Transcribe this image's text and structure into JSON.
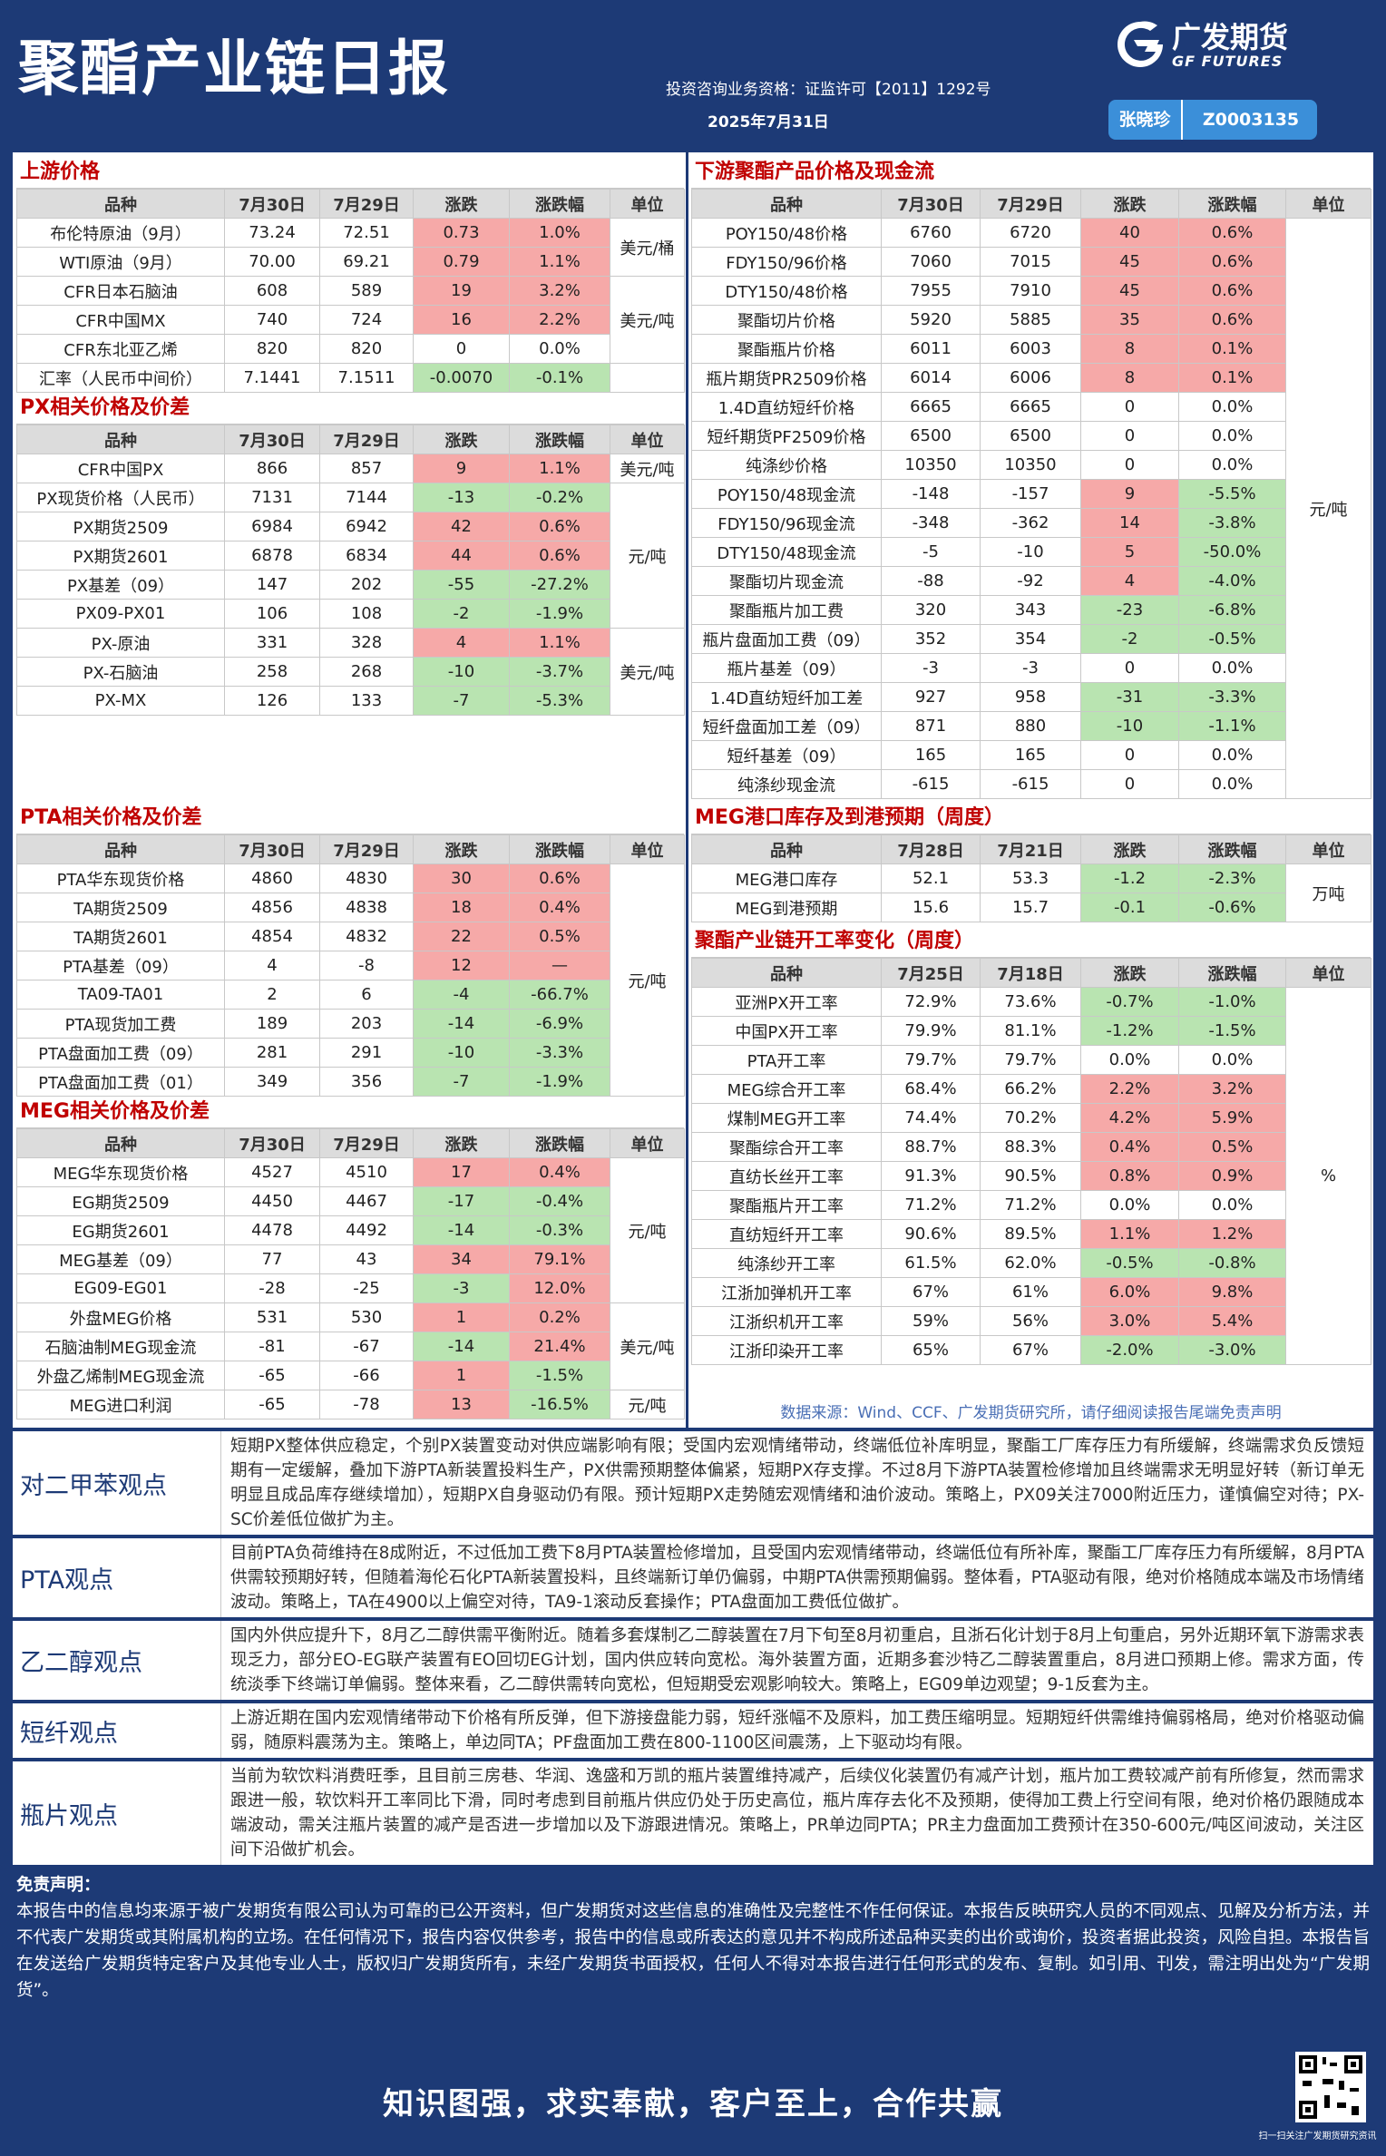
{
  "header": {
    "title": "聚酯产业链日报",
    "license": "投资咨询业务资格：证监许可【2011】1292号",
    "date": "2025年7月31日",
    "logo_cn": "广发期货",
    "logo_en": "GF FUTURES",
    "analyst": "张晓珍",
    "analyst_id": "Z0003135"
  },
  "tables": [
    {
      "title": "上游价格",
      "columns": [
        "品种",
        "7月30日",
        "7月29日",
        "涨跌",
        "涨跌幅",
        "单位"
      ],
      "rows": [
        [
          "布伦特原油（9月）",
          "73.24",
          "72.51",
          "0.73",
          "1.0%"
        ],
        [
          "WTI原油（9月）",
          "70.00",
          "69.21",
          "0.79",
          "1.1%"
        ],
        [
          "CFR日本石脑油",
          "608",
          "589",
          "19",
          "3.2%"
        ],
        [
          "CFR中国MX",
          "740",
          "724",
          "16",
          "2.2%"
        ],
        [
          "CFR东北亚乙烯",
          "820",
          "820",
          "0",
          "0.0%"
        ],
        [
          "汇率（人民币中间价）",
          "7.1441",
          "7.1511",
          "-0.0070",
          "-0.1%"
        ]
      ],
      "unit_groups": [
        {
          "unit": "美元/桶",
          "rows": [
            0,
            1
          ]
        },
        {
          "unit": "美元/吨",
          "rows": [
            2,
            3,
            4
          ]
        }
      ]
    },
    {
      "title": "PX相关价格及价差",
      "columns": [
        "品种",
        "7月30日",
        "7月29日",
        "涨跌",
        "涨跌幅",
        "单位"
      ],
      "rows": [
        [
          "CFR中国PX",
          "866",
          "857",
          "9",
          "1.1%"
        ],
        [
          "PX现货价格（人民币）",
          "7131",
          "7144",
          "-13",
          "-0.2%"
        ],
        [
          "PX期货2509",
          "6984",
          "6942",
          "42",
          "0.6%"
        ],
        [
          "PX期货2601",
          "6878",
          "6834",
          "44",
          "0.6%"
        ],
        [
          "PX基差（09）",
          "147",
          "202",
          "-55",
          "-27.2%"
        ],
        [
          "PX09-PX01",
          "106",
          "108",
          "-2",
          "-1.9%"
        ],
        [
          "PX-原油",
          "331",
          "328",
          "4",
          "1.1%"
        ],
        [
          "PX-石脑油",
          "258",
          "268",
          "-10",
          "-3.7%"
        ],
        [
          "PX-MX",
          "126",
          "133",
          "-7",
          "-5.3%"
        ]
      ],
      "unit_groups": [
        {
          "unit": "美元/吨",
          "rows": [
            0
          ]
        },
        {
          "unit": "元/吨",
          "rows": [
            1,
            2,
            3,
            4,
            5
          ]
        },
        {
          "unit": "美元/吨",
          "rows": [
            6,
            7,
            8
          ]
        }
      ]
    },
    {
      "title": "PTA相关价格及价差",
      "columns": [
        "品种",
        "7月30日",
        "7月29日",
        "涨跌",
        "涨跌幅",
        "单位"
      ],
      "rows": [
        [
          "PTA华东现货价格",
          "4860",
          "4830",
          "30",
          "0.6%"
        ],
        [
          "TA期货2509",
          "4856",
          "4838",
          "18",
          "0.4%"
        ],
        [
          "TA期货2601",
          "4854",
          "4832",
          "22",
          "0.5%"
        ],
        [
          "PTA基差（09）",
          "4",
          "-8",
          "12",
          "—"
        ],
        [
          "TA09-TA01",
          "2",
          "6",
          "-4",
          "-66.7%"
        ],
        [
          "PTA现货加工费",
          "189",
          "203",
          "-14",
          "-6.9%"
        ],
        [
          "PTA盘面加工费（09）",
          "281",
          "291",
          "-10",
          "-3.3%"
        ],
        [
          "PTA盘面加工费（01）",
          "349",
          "356",
          "-7",
          "-1.9%"
        ]
      ],
      "unit_groups": [
        {
          "unit": "元/吨",
          "rows": [
            0,
            1,
            2,
            3,
            4,
            5,
            6,
            7
          ]
        }
      ]
    },
    {
      "title": "MEG相关价格及价差",
      "columns": [
        "品种",
        "7月30日",
        "7月29日",
        "涨跌",
        "涨跌幅",
        "单位"
      ],
      "rows": [
        [
          "MEG华东现货价格",
          "4527",
          "4510",
          "17",
          "0.4%"
        ],
        [
          "EG期货2509",
          "4450",
          "4467",
          "-17",
          "-0.4%"
        ],
        [
          "EG期货2601",
          "4478",
          "4492",
          "-14",
          "-0.3%"
        ],
        [
          "MEG基差（09）",
          "77",
          "43",
          "34",
          "79.1%"
        ],
        [
          "EG09-EG01",
          "-28",
          "-25",
          "-3",
          "12.0%"
        ],
        [
          "外盘MEG价格",
          "531",
          "530",
          "1",
          "0.2%"
        ],
        [
          "石脑油制MEG现金流",
          "-81",
          "-67",
          "-14",
          "21.4%"
        ],
        [
          "外盘乙烯制MEG现金流",
          "-65",
          "-66",
          "1",
          "-1.5%"
        ],
        [
          "MEG进口利润",
          "-65",
          "-78",
          "13",
          "-16.5%"
        ]
      ],
      "unit_groups": [
        {
          "unit": "元/吨",
          "rows": [
            0,
            1,
            2,
            3,
            4
          ]
        },
        {
          "unit": "美元/吨",
          "rows": [
            5,
            6,
            7
          ]
        },
        {
          "unit": "元/吨",
          "rows": [
            8
          ]
        }
      ]
    },
    {
      "title": "下游聚酯产品价格及现金流",
      "columns": [
        "品种",
        "7月30日",
        "7月29日",
        "涨跌",
        "涨跌幅",
        "单位"
      ],
      "rows": [
        [
          "POY150/48价格",
          "6760",
          "6720",
          "40",
          "0.6%"
        ],
        [
          "FDY150/96价格",
          "7060",
          "7015",
          "45",
          "0.6%"
        ],
        [
          "DTY150/48价格",
          "7955",
          "7910",
          "45",
          "0.6%"
        ],
        [
          "聚酯切片价格",
          "5920",
          "5885",
          "35",
          "0.6%"
        ],
        [
          "聚酯瓶片价格",
          "6011",
          "6003",
          "8",
          "0.1%"
        ],
        [
          "瓶片期货PR2509价格",
          "6014",
          "6006",
          "8",
          "0.1%"
        ],
        [
          "1.4D直纺短纤价格",
          "6665",
          "6665",
          "0",
          "0.0%"
        ],
        [
          "短纤期货PF2509价格",
          "6500",
          "6500",
          "0",
          "0.0%"
        ],
        [
          "纯涤纱价格",
          "10350",
          "10350",
          "0",
          "0.0%"
        ],
        [
          "POY150/48现金流",
          "-148",
          "-157",
          "9",
          "-5.5%"
        ],
        [
          "FDY150/96现金流",
          "-348",
          "-362",
          "14",
          "-3.8%"
        ],
        [
          "DTY150/48现金流",
          "-5",
          "-10",
          "5",
          "-50.0%"
        ],
        [
          "聚酯切片现金流",
          "-88",
          "-92",
          "4",
          "-4.0%"
        ],
        [
          "聚酯瓶片加工费",
          "320",
          "343",
          "-23",
          "-6.8%"
        ],
        [
          "瓶片盘面加工费（09）",
          "352",
          "354",
          "-2",
          "-0.5%"
        ],
        [
          "瓶片基差（09）",
          "-3",
          "-3",
          "0",
          "0.0%"
        ],
        [
          "1.4D直纺短纤加工差",
          "927",
          "958",
          "-31",
          "-3.3%"
        ],
        [
          "短纤盘面加工差（09）",
          "871",
          "880",
          "-10",
          "-1.1%"
        ],
        [
          "短纤基差（09）",
          "165",
          "165",
          "0",
          "0.0%"
        ],
        [
          "纯涤纱现金流",
          "-615",
          "-615",
          "0",
          "0.0%"
        ]
      ],
      "unit_groups": [
        {
          "unit": "元/吨",
          "rows": [
            0,
            1,
            2,
            3,
            4,
            5,
            6,
            7,
            8,
            9,
            10,
            11,
            12,
            13,
            14,
            15,
            16,
            17,
            18,
            19
          ]
        }
      ]
    },
    {
      "title": "MEG港口库存及到港预期（周度）",
      "columns": [
        "品种",
        "7月28日",
        "7月21日",
        "涨跌",
        "涨跌幅",
        "单位"
      ],
      "rows": [
        [
          "MEG港口库存",
          "52.1",
          "53.3",
          "-1.2",
          "-2.3%"
        ],
        [
          "MEG到港预期",
          "15.6",
          "15.7",
          "-0.1",
          "-0.6%"
        ]
      ],
      "unit_groups": [
        {
          "unit": "万吨",
          "rows": [
            0,
            1
          ]
        }
      ]
    },
    {
      "title": "聚酯产业链开工率变化（周度）",
      "columns": [
        "品种",
        "7月25日",
        "7月18日",
        "涨跌",
        "涨跌幅",
        "单位"
      ],
      "rows": [
        [
          "亚洲PX开工率",
          "72.9%",
          "73.6%",
          "-0.7%",
          "-1.0%"
        ],
        [
          "中国PX开工率",
          "79.9%",
          "81.1%",
          "-1.2%",
          "-1.5%"
        ],
        [
          "PTA开工率",
          "79.7%",
          "79.7%",
          "0.0%",
          "0.0%"
        ],
        [
          "MEG综合开工率",
          "68.4%",
          "66.2%",
          "2.2%",
          "3.2%"
        ],
        [
          "煤制MEG开工率",
          "74.4%",
          "70.2%",
          "4.2%",
          "5.9%"
        ],
        [
          "聚酯综合开工率",
          "88.7%",
          "88.3%",
          "0.4%",
          "0.5%"
        ],
        [
          "直纺长丝开工率",
          "91.3%",
          "90.5%",
          "0.8%",
          "0.9%"
        ],
        [
          "聚酯瓶片开工率",
          "71.2%",
          "71.2%",
          "0.0%",
          "0.0%"
        ],
        [
          "直纺短纤开工率",
          "90.6%",
          "89.5%",
          "1.1%",
          "1.2%"
        ],
        [
          "纯涤纱开工率",
          "61.5%",
          "62.0%",
          "-0.5%",
          "-0.8%"
        ],
        [
          "江浙加弹机开工率",
          "67%",
          "61%",
          "6.0%",
          "9.8%"
        ],
        [
          "江浙织机开工率",
          "59%",
          "56%",
          "3.0%",
          "5.4%"
        ],
        [
          "江浙印染开工率",
          "65%",
          "67%",
          "-2.0%",
          "-3.0%"
        ]
      ],
      "unit_groups": [
        {
          "unit": "%",
          "rows": [
            0,
            1,
            2,
            3,
            4,
            5,
            6,
            7,
            8,
            9,
            10,
            11,
            12
          ]
        }
      ]
    }
  ],
  "source": "数据来源：Wind、CCF、广发期货研究所，请仔细阅读报告尾端免责声明",
  "views": [
    {
      "label": "对二甲苯观点",
      "text": "短期PX整体供应稳定，个别PX装置变动对供应端影响有限；受国内宏观情绪带动，终端低位补库明显，聚酯工厂库存压力有所缓解，终端需求负反馈短期有一定缓解，叠加下游PTA新装置投料生产，PX供需预期整体偏紧，短期PX存支撑。不过8月下游PTA装置检修增加且终端需求无明显好转（新订单无明显且成品库存继续增加），短期PX自身驱动仍有限。预计短期PX走势随宏观情绪和油价波动。策略上，PX09关注7000附近压力，谨慎偏空对待；PX-SC价差低位做扩为主。"
    },
    {
      "label": "PTA观点",
      "text": "目前PTA负荷维持在8成附近，不过低加工费下8月PTA装置检修增加，且受国内宏观情绪带动，终端低位有所补库，聚酯工厂库存压力有所缓解，8月PTA供需较预期好转，但随着海伦石化PTA新装置投料，且终端新订单仍偏弱，中期PTA供需预期偏弱。整体看，PTA驱动有限，绝对价格随成本端及市场情绪波动。策略上，TA在4900以上偏空对待，TA9-1滚动反套操作；PTA盘面加工费低位做扩。"
    },
    {
      "label": "乙二醇观点",
      "text": "国内外供应提升下，8月乙二醇供需平衡附近。随着多套煤制乙二醇装置在7月下旬至8月初重启，且浙石化计划于8月上旬重启，另外近期环氧下游需求表现乏力，部分EO-EG联产装置有EO回切EG计划，国内供应转向宽松。海外装置方面，近期多套沙特乙二醇装置重启，8月进口预期上修。需求方面，传统淡季下终端订单偏弱。整体来看，乙二醇供需转向宽松，但短期受宏观影响较大。策略上，EG09单边观望；9-1反套为主。"
    },
    {
      "label": "短纤观点",
      "text": "上游近期在国内宏观情绪带动下价格有所反弹，但下游接盘能力弱，短纤涨幅不及原料，加工费压缩明显。短期短纤供需维持偏弱格局，绝对价格驱动偏弱，随原料震荡为主。策略上，单边同TA；PF盘面加工费在800-1100区间震荡，上下驱动均有限。"
    },
    {
      "label": "瓶片观点",
      "text": "当前为软饮料消费旺季，且目前三房巷、华润、逸盛和万凯的瓶片装置维持减产，后续仪化装置仍有减产计划，瓶片加工费较减产前有所修复，然而需求跟进一般，软饮料开工率同比下滑，同时考虑到目前瓶片供应仍处于历史高位，瓶片库存去化不及预期，使得加工费上行空间有限，绝对价格仍跟随成本端波动，需关注瓶片装置的减产是否进一步增加以及下游跟进情况。策略上，PR单边同PTA；PR主力盘面加工费预计在350-600元/吨区间波动，关注区间下沿做扩机会。"
    }
  ],
  "disclaimer": {
    "heading": "免责声明：",
    "text": "本报告中的信息均来源于被广发期货有限公司认为可靠的已公开资料，但广发期货对这些信息的准确性及完整性不作任何保证。本报告反映研究人员的不同观点、见解及分析方法，并不代表广发期货或其附属机构的立场。在任何情况下，报告内容仅供参考，报告中的信息或所表达的意见并不构成所述品种买卖的出价或询价，投资者据此投资，风险自担。本报告旨在发送给广发期货特定客户及其他专业人士，版权归广发期货所有，未经广发期货书面授权，任何人不得对本报告进行任何形式的发布、复制。如引用、刊发，需注明出处为“广发期货”。"
  },
  "footer": {
    "slogan": "知识图强，求实奉献，客户至上，合作共赢",
    "qr_caption": "扫一扫关注广发期货研究资讯"
  }
}
